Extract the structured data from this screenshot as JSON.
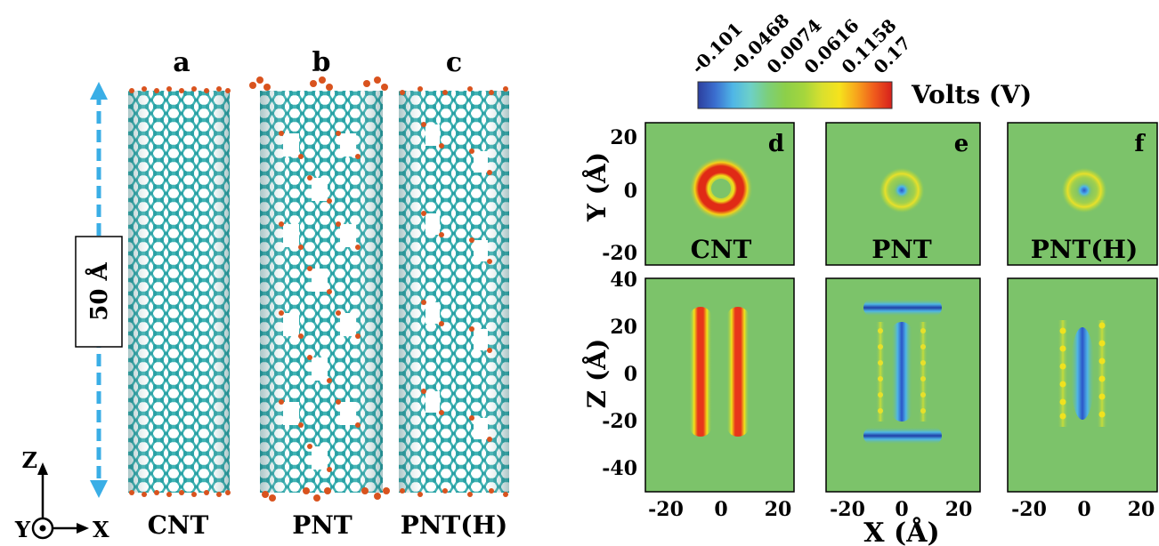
{
  "structures": {
    "panel_letters": [
      "a",
      "b",
      "c"
    ],
    "names": [
      "CNT",
      "PNT",
      "PNT(H)"
    ],
    "length_label": "50 Å",
    "axes_triad": {
      "z": "Z",
      "x": "X",
      "y": "Y"
    },
    "colors": {
      "carbon": "#3fb4b4",
      "carbon_dark": "#1e7f84",
      "terminal": "#d9531e",
      "dimension_arrow": "#3aaee6"
    }
  },
  "colorbar": {
    "ticks": [
      "-0.101",
      "-0.0468",
      "0.0074",
      "0.0616",
      "0.1158",
      "0.17"
    ],
    "unit_label": "Volts (V)",
    "colors": [
      "#2c3f9e",
      "#3b6fd0",
      "#4fb6e6",
      "#6dd0c8",
      "#7ccf7a",
      "#8ccf4a",
      "#a6d63c",
      "#d9e02e",
      "#f6e21c",
      "#f7a31c",
      "#ef5a1c",
      "#d6201c"
    ]
  },
  "maps": {
    "top_panel_letters": [
      "d",
      "e",
      "f"
    ],
    "top_labels": [
      "CNT",
      "PNT",
      "PNT(H)"
    ],
    "y_axis_top_label": "Y (Å)",
    "y_axis_top_ticks": [
      "20",
      "0",
      "-20"
    ],
    "y_axis_bottom_label": "Z (Å)",
    "y_axis_bottom_ticks": [
      "40",
      "20",
      "0",
      "-20",
      "-40"
    ],
    "x_ticks": [
      "-20",
      "0",
      "20"
    ],
    "x_axis_label": "X (Å)",
    "background_color": "#7cc36a"
  }
}
